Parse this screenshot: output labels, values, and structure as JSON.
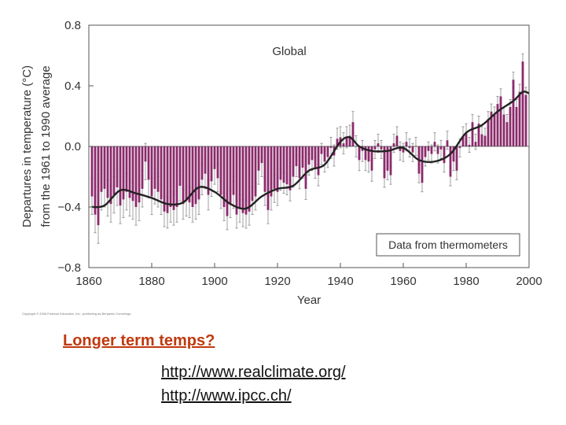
{
  "chart_data": {
    "type": "bar",
    "title": "Global",
    "xlabel": "Year",
    "ylabel_line1": "Departures in temperature (°C)",
    "ylabel_line2": "from the 1961 to 1990 average",
    "annotation": "Data from thermometers",
    "xlim": [
      1860,
      2000
    ],
    "ylim": [
      -0.8,
      0.8
    ],
    "x_ticks": [
      1860,
      1880,
      1900,
      1920,
      1940,
      1960,
      1980,
      2000
    ],
    "y_ticks": [
      -0.8,
      -0.4,
      0.0,
      0.4,
      0.8
    ],
    "y_tick_labels": [
      "−0.8",
      "−0.4",
      "0.0",
      "0.4",
      "0.8"
    ],
    "bar_color": "#8b2a6b",
    "line_color": "#222222",
    "error_color": "#888888",
    "start_year": 1861,
    "series": [
      {
        "type": "bar",
        "values": [
          -0.33,
          -0.45,
          -0.52,
          -0.3,
          -0.28,
          -0.34,
          -0.38,
          -0.32,
          -0.27,
          -0.39,
          -0.35,
          -0.3,
          -0.34,
          -0.36,
          -0.4,
          -0.37,
          -0.28,
          -0.1,
          -0.22,
          -0.33,
          -0.28,
          -0.3,
          -0.35,
          -0.43,
          -0.44,
          -0.4,
          -0.42,
          -0.4,
          -0.26,
          -0.38,
          -0.36,
          -0.37,
          -0.4,
          -0.38,
          -0.35,
          -0.22,
          -0.18,
          -0.32,
          -0.23,
          -0.15,
          -0.21,
          -0.32,
          -0.4,
          -0.46,
          -0.38,
          -0.32,
          -0.45,
          -0.41,
          -0.44,
          -0.45,
          -0.43,
          -0.36,
          -0.33,
          -0.16,
          -0.11,
          -0.3,
          -0.42,
          -0.33,
          -0.28,
          -0.3,
          -0.22,
          -0.24,
          -0.25,
          -0.29,
          -0.2,
          -0.13,
          -0.21,
          -0.14,
          -0.28,
          -0.12,
          -0.09,
          -0.14,
          -0.19,
          -0.05,
          -0.1,
          -0.07,
          -0.01,
          -0.06,
          0.05,
          0.06,
          0.02,
          0.06,
          0.07,
          0.16,
          0.0,
          -0.09,
          -0.03,
          -0.09,
          -0.1,
          -0.16,
          -0.02,
          0.02,
          -0.02,
          -0.21,
          -0.16,
          -0.19,
          0.02,
          0.07,
          -0.03,
          -0.04,
          0.03,
          -0.01,
          -0.04,
          0.0,
          -0.18,
          -0.24,
          -0.07,
          -0.03,
          -0.05,
          0.03,
          -0.05,
          -0.02,
          -0.11,
          0.04,
          -0.2,
          -0.1,
          -0.16,
          -0.01,
          0.07,
          0.09,
          0.01,
          0.16,
          0.03,
          0.15,
          0.08,
          0.07,
          0.18,
          0.23,
          0.21,
          0.28,
          0.33,
          0.21,
          0.16,
          0.26,
          0.44,
          0.26,
          0.36,
          0.56,
          0.34
        ],
        "errors": [
          0.12,
          0.12,
          0.12,
          0.12,
          0.12,
          0.12,
          0.12,
          0.12,
          0.12,
          0.12,
          0.12,
          0.12,
          0.12,
          0.12,
          0.12,
          0.12,
          0.12,
          0.12,
          0.12,
          0.12,
          0.1,
          0.1,
          0.1,
          0.1,
          0.1,
          0.1,
          0.1,
          0.1,
          0.1,
          0.1,
          0.1,
          0.1,
          0.1,
          0.1,
          0.1,
          0.1,
          0.1,
          0.1,
          0.1,
          0.1,
          0.09,
          0.09,
          0.09,
          0.09,
          0.09,
          0.09,
          0.09,
          0.09,
          0.09,
          0.09,
          0.09,
          0.09,
          0.09,
          0.09,
          0.09,
          0.09,
          0.09,
          0.09,
          0.09,
          0.09,
          0.07,
          0.07,
          0.07,
          0.07,
          0.07,
          0.07,
          0.07,
          0.07,
          0.07,
          0.07,
          0.07,
          0.07,
          0.07,
          0.07,
          0.07,
          0.07,
          0.07,
          0.07,
          0.07,
          0.07,
          0.07,
          0.07,
          0.07,
          0.07,
          0.07,
          0.07,
          0.07,
          0.07,
          0.07,
          0.07,
          0.06,
          0.06,
          0.06,
          0.06,
          0.06,
          0.06,
          0.06,
          0.06,
          0.06,
          0.06,
          0.06,
          0.06,
          0.06,
          0.06,
          0.06,
          0.06,
          0.06,
          0.06,
          0.06,
          0.06,
          0.06,
          0.06,
          0.06,
          0.06,
          0.06,
          0.06,
          0.06,
          0.06,
          0.06,
          0.06,
          0.05,
          0.05,
          0.05,
          0.05,
          0.05,
          0.05,
          0.05,
          0.05,
          0.05,
          0.05,
          0.05,
          0.05,
          0.05,
          0.05,
          0.05,
          0.05,
          0.05,
          0.05,
          0.05
        ]
      },
      {
        "type": "line",
        "x": [
          1861,
          1865,
          1870,
          1875,
          1880,
          1885,
          1890,
          1895,
          1900,
          1905,
          1910,
          1915,
          1920,
          1925,
          1930,
          1935,
          1940,
          1943,
          1946,
          1950,
          1955,
          1960,
          1965,
          1970,
          1975,
          1980,
          1985,
          1990,
          1995,
          1998,
          2000
        ],
        "values": [
          -0.4,
          -0.39,
          -0.29,
          -0.31,
          -0.34,
          -0.38,
          -0.37,
          -0.27,
          -0.3,
          -0.38,
          -0.41,
          -0.33,
          -0.28,
          -0.26,
          -0.16,
          -0.12,
          0.03,
          0.06,
          0.0,
          -0.03,
          -0.03,
          -0.01,
          -0.09,
          -0.1,
          -0.05,
          0.09,
          0.14,
          0.23,
          0.3,
          0.36,
          0.35
        ]
      }
    ]
  },
  "copyright": "Copyright © 2006 Pearson Education, Inc., publishing as Benjamin Cummings.",
  "question": "Longer term temps?",
  "links": [
    "http://www.realclimate.org/",
    "http://www.ipcc.ch/"
  ]
}
